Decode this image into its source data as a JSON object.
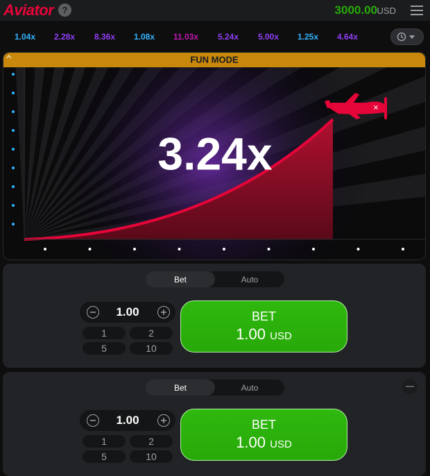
{
  "header": {
    "logo": "Aviator",
    "help": "?",
    "balance": "3000.00",
    "currency": "USD"
  },
  "history": [
    {
      "text": "1.04x",
      "color": "#34b4ff"
    },
    {
      "text": "2.28x",
      "color": "#913ef8"
    },
    {
      "text": "8.36x",
      "color": "#913ef8"
    },
    {
      "text": "1.08x",
      "color": "#34b4ff"
    },
    {
      "text": "11.03x",
      "color": "#c017b4"
    },
    {
      "text": "5.24x",
      "color": "#913ef8"
    },
    {
      "text": "5.00x",
      "color": "#913ef8"
    },
    {
      "text": "1.25x",
      "color": "#34b4ff"
    },
    {
      "text": "4.64x",
      "color": "#913ef8"
    }
  ],
  "game": {
    "banner": "FUN MODE",
    "multiplier": "3.24x"
  },
  "bet_panels": [
    {
      "tabs": [
        "Bet",
        "Auto"
      ],
      "amount": "1.00",
      "quick_amounts": [
        "1",
        "2",
        "5",
        "10"
      ],
      "button": {
        "label": "BET",
        "amount": "1.00",
        "currency": "USD"
      }
    },
    {
      "tabs": [
        "Bet",
        "Auto"
      ],
      "amount": "1.00",
      "quick_amounts": [
        "1",
        "2",
        "5",
        "10"
      ],
      "button": {
        "label": "BET",
        "amount": "1.00",
        "currency": "USD"
      }
    }
  ]
}
